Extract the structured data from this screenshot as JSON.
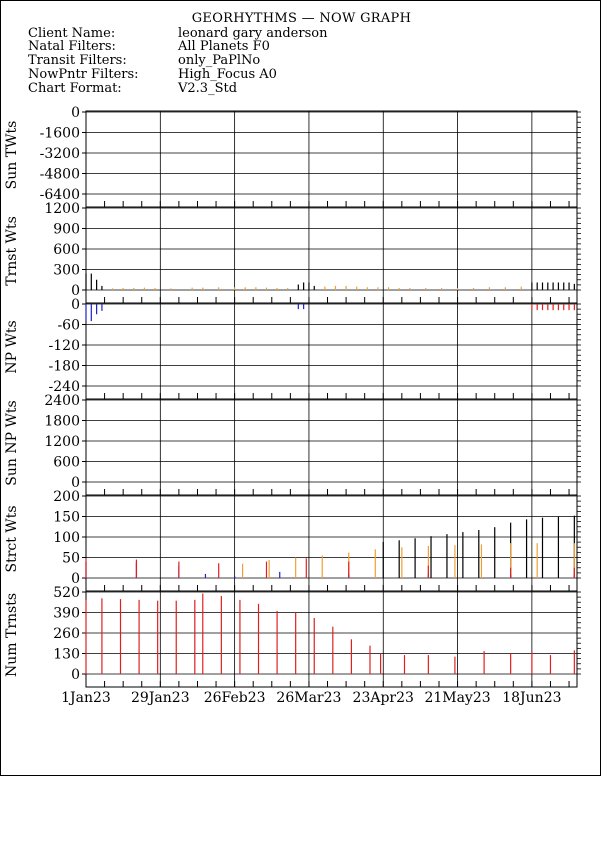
{
  "header": {
    "title": "GEORHYTHMS — NOW GRAPH",
    "rows": [
      {
        "label": "Client Name:",
        "value": "leonard gary anderson"
      },
      {
        "label": "Natal Filters:",
        "value": "All Planets F0"
      },
      {
        "label": "Transit Filters:",
        "value": "only_PaPlNo"
      },
      {
        "label": "NowPntr Filters:",
        "value": "High_Focus A0"
      },
      {
        "label": "Chart Format:",
        "value": "V2.3_Std"
      }
    ]
  },
  "colors": {
    "black": "#000000",
    "orange": "#f0a030",
    "blue": "#1a22c8",
    "red": "#e02020"
  },
  "chart_data": {
    "type": "bar",
    "x_axis": {
      "tick_labels": [
        "1Jan23",
        "29Jan23",
        "26Feb23",
        "26Mar23",
        "23Apr23",
        "21May23",
        "18Jun23"
      ],
      "start": "2023-01-01",
      "end": "2023-07-05",
      "major_tick_dates": [
        "2023-01-01",
        "2023-01-29",
        "2023-02-26",
        "2023-03-26",
        "2023-04-23",
        "2023-05-21",
        "2023-06-18"
      ]
    },
    "panels": [
      {
        "ylabel": "Sun TWts",
        "ylim": [
          -6400,
          0
        ],
        "ticks": [
          "0",
          "-1600",
          "-3200",
          "-4800",
          "-6400"
        ],
        "series": []
      },
      {
        "ylabel": "Trnst Wts",
        "ylim": [
          0,
          1200
        ],
        "ticks": [
          "1200",
          "900",
          "600",
          "300",
          "0"
        ],
        "series": [
          {
            "color": "black",
            "points": [
              [
                "2023-01-01",
                240
              ],
              [
                "2023-01-03",
                240
              ],
              [
                "2023-01-05",
                150
              ],
              [
                "2023-01-07",
                60
              ],
              [
                "2023-03-22",
                80
              ],
              [
                "2023-03-24",
                110
              ],
              [
                "2023-03-26",
                110
              ],
              [
                "2023-03-28",
                60
              ],
              [
                "2023-06-18",
                110
              ],
              [
                "2023-06-20",
                110
              ],
              [
                "2023-06-22",
                110
              ],
              [
                "2023-06-24",
                110
              ],
              [
                "2023-06-26",
                110
              ],
              [
                "2023-06-28",
                110
              ],
              [
                "2023-06-30",
                110
              ],
              [
                "2023-07-02",
                110
              ],
              [
                "2023-07-04",
                90
              ]
            ]
          },
          {
            "color": "orange",
            "points": [
              [
                "2023-01-11",
                25
              ],
              [
                "2023-01-15",
                30
              ],
              [
                "2023-01-19",
                30
              ],
              [
                "2023-01-23",
                35
              ],
              [
                "2023-01-27",
                30
              ],
              [
                "2023-02-02",
                25
              ],
              [
                "2023-02-10",
                35
              ],
              [
                "2023-02-14",
                35
              ],
              [
                "2023-02-20",
                40
              ],
              [
                "2023-02-26",
                40
              ],
              [
                "2023-03-02",
                40
              ],
              [
                "2023-03-06",
                40
              ],
              [
                "2023-03-10",
                35
              ],
              [
                "2023-03-14",
                30
              ],
              [
                "2023-03-18",
                30
              ],
              [
                "2023-04-01",
                50
              ],
              [
                "2023-04-05",
                60
              ],
              [
                "2023-04-09",
                60
              ],
              [
                "2023-04-13",
                50
              ],
              [
                "2023-04-17",
                40
              ],
              [
                "2023-04-21",
                40
              ],
              [
                "2023-04-25",
                40
              ],
              [
                "2023-04-29",
                30
              ],
              [
                "2023-05-03",
                30
              ],
              [
                "2023-05-09",
                30
              ],
              [
                "2023-05-15",
                30
              ],
              [
                "2023-05-21",
                30
              ],
              [
                "2023-05-27",
                30
              ],
              [
                "2023-06-02",
                40
              ],
              [
                "2023-06-08",
                40
              ],
              [
                "2023-06-14",
                50
              ]
            ]
          }
        ]
      },
      {
        "ylabel": "NP Wts",
        "ylim": [
          -240,
          0
        ],
        "ticks": [
          "0",
          "-60",
          "-120",
          "-180",
          "-240"
        ],
        "series": [
          {
            "color": "blue",
            "points": [
              [
                "2023-01-01",
                -50
              ],
              [
                "2023-01-03",
                -50
              ],
              [
                "2023-01-05",
                -30
              ],
              [
                "2023-01-07",
                -20
              ],
              [
                "2023-03-22",
                -15
              ],
              [
                "2023-03-24",
                -15
              ]
            ]
          },
          {
            "color": "red",
            "points": [
              [
                "2023-06-18",
                -18
              ],
              [
                "2023-06-20",
                -18
              ],
              [
                "2023-06-22",
                -18
              ],
              [
                "2023-06-24",
                -18
              ],
              [
                "2023-06-26",
                -18
              ],
              [
                "2023-06-28",
                -18
              ],
              [
                "2023-06-30",
                -18
              ],
              [
                "2023-07-02",
                -18
              ],
              [
                "2023-07-04",
                -18
              ]
            ]
          }
        ]
      },
      {
        "ylabel": "Sun NP Wts",
        "ylim": [
          0,
          2400
        ],
        "ticks": [
          "2400",
          "1800",
          "1200",
          "600",
          "0"
        ],
        "series": []
      },
      {
        "ylabel": "Strct Wts",
        "ylim": [
          0,
          200
        ],
        "ticks": [
          "200",
          "150",
          "100",
          "50",
          "0"
        ],
        "series": [
          {
            "color": "black",
            "points": [
              [
                "2023-04-23",
                88
              ],
              [
                "2023-04-29",
                92
              ],
              [
                "2023-05-05",
                97
              ],
              [
                "2023-05-11",
                102
              ],
              [
                "2023-05-17",
                107
              ],
              [
                "2023-05-23",
                112
              ],
              [
                "2023-05-29",
                117
              ],
              [
                "2023-06-04",
                124
              ],
              [
                "2023-06-10",
                135
              ],
              [
                "2023-06-16",
                143
              ],
              [
                "2023-06-22",
                147
              ],
              [
                "2023-06-28",
                150
              ],
              [
                "2023-07-04",
                152
              ]
            ]
          },
          {
            "color": "orange",
            "points": [
              [
                "2023-03-01",
                35
              ],
              [
                "2023-03-11",
                44
              ],
              [
                "2023-03-21",
                50
              ],
              [
                "2023-03-31",
                55
              ],
              [
                "2023-04-10",
                62
              ],
              [
                "2023-04-20",
                70
              ],
              [
                "2023-04-30",
                75
              ],
              [
                "2023-05-10",
                78
              ],
              [
                "2023-05-20",
                80
              ],
              [
                "2023-05-30",
                82
              ],
              [
                "2023-06-10",
                85
              ],
              [
                "2023-06-20",
                85
              ],
              [
                "2023-07-04",
                85
              ]
            ]
          },
          {
            "color": "blue",
            "points": [
              [
                "2023-01-01",
                40
              ],
              [
                "2023-01-20",
                38
              ],
              [
                "2023-02-05",
                30
              ],
              [
                "2023-02-15",
                10
              ],
              [
                "2023-02-26",
                5
              ],
              [
                "2023-03-15",
                15
              ],
              [
                "2023-04-10",
                10
              ],
              [
                "2023-05-10",
                10
              ],
              [
                "2023-06-10",
                8
              ],
              [
                "2023-07-04",
                8
              ]
            ]
          },
          {
            "color": "red",
            "points": [
              [
                "2023-01-01",
                48
              ],
              [
                "2023-01-20",
                45
              ],
              [
                "2023-02-05",
                40
              ],
              [
                "2023-02-20",
                36
              ],
              [
                "2023-03-10",
                40
              ],
              [
                "2023-03-25",
                48
              ],
              [
                "2023-04-10",
                40
              ],
              [
                "2023-05-10",
                30
              ],
              [
                "2023-06-10",
                25
              ],
              [
                "2023-07-04",
                25
              ]
            ]
          }
        ]
      },
      {
        "ylabel": "Num Trnsts",
        "ylim": [
          0,
          520
        ],
        "ticks": [
          "520",
          "390",
          "260",
          "130",
          "0"
        ],
        "series": [
          {
            "color": "red",
            "points": [
              [
                "2023-01-01",
                470
              ],
              [
                "2023-01-07",
                480
              ],
              [
                "2023-01-14",
                475
              ],
              [
                "2023-01-21",
                470
              ],
              [
                "2023-01-28",
                465
              ],
              [
                "2023-02-04",
                465
              ],
              [
                "2023-02-11",
                470
              ],
              [
                "2023-02-14",
                510
              ],
              [
                "2023-02-21",
                495
              ],
              [
                "2023-02-28",
                470
              ],
              [
                "2023-03-07",
                445
              ],
              [
                "2023-03-14",
                400
              ],
              [
                "2023-03-21",
                390
              ],
              [
                "2023-03-28",
                355
              ],
              [
                "2023-04-04",
                300
              ],
              [
                "2023-04-11",
                220
              ],
              [
                "2023-04-18",
                180
              ],
              [
                "2023-04-22",
                130
              ],
              [
                "2023-05-01",
                120
              ],
              [
                "2023-05-10",
                120
              ],
              [
                "2023-05-20",
                110
              ],
              [
                "2023-05-31",
                145
              ],
              [
                "2023-06-10",
                130
              ],
              [
                "2023-06-18",
                140
              ],
              [
                "2023-06-25",
                120
              ],
              [
                "2023-07-04",
                150
              ]
            ]
          }
        ]
      }
    ]
  }
}
